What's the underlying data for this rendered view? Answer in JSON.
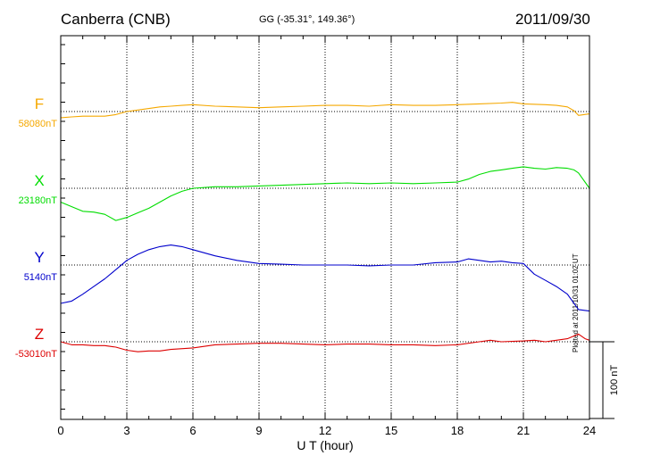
{
  "header": {
    "station": "Canberra (CNB)",
    "coords": "GG (-35.31°, 149.36°)",
    "date": "2011/09/30",
    "plotted": "Plotted at 2011/10/31 01:02 UT"
  },
  "colors": {
    "F": "#f5a800",
    "X": "#00dd00",
    "Y": "#0000cc",
    "Z": "#dd0000",
    "grid": "#000000"
  },
  "chart_data": {
    "type": "line",
    "xlabel": "U T (hour)",
    "xlim": [
      0,
      24
    ],
    "xticks": [
      "0",
      "3",
      "6",
      "9",
      "12",
      "15",
      "18",
      "21",
      "24"
    ],
    "scale_bar_label": "100 nT",
    "scale_bar_nT": 100,
    "series": [
      {
        "name": "F",
        "base_label": "58080nT",
        "baseline_nT": 58080,
        "x": [
          0,
          0.5,
          1,
          1.5,
          2,
          2.5,
          3,
          3.5,
          4,
          4.5,
          5,
          5.5,
          6,
          7,
          8,
          9,
          10,
          11,
          12,
          13,
          14,
          15,
          16,
          17,
          18,
          19,
          20,
          20.5,
          21,
          22,
          22.5,
          23,
          23.3,
          23.5,
          24
        ],
        "values": [
          -8,
          -7,
          -6,
          -6,
          -6,
          -4,
          0,
          2,
          4,
          6,
          7,
          8,
          9,
          7,
          6,
          5,
          6,
          7,
          8,
          8,
          7,
          9,
          8,
          8,
          9,
          10,
          11,
          12,
          10,
          9,
          8,
          6,
          1,
          -5,
          -3
        ]
      },
      {
        "name": "X",
        "base_label": "23180nT",
        "baseline_nT": 23180,
        "x": [
          0,
          0.5,
          1,
          1.5,
          2,
          2.5,
          3,
          3.5,
          4,
          4.5,
          5,
          5.5,
          6,
          7,
          8,
          9,
          10,
          11,
          12,
          13,
          14,
          15,
          16,
          17,
          18,
          18.5,
          19,
          19.5,
          20,
          20.5,
          21,
          21.5,
          22,
          22.5,
          23,
          23.3,
          23.5,
          23.7,
          24
        ],
        "values": [
          -18,
          -24,
          -30,
          -31,
          -34,
          -42,
          -38,
          -32,
          -26,
          -18,
          -10,
          -4,
          0,
          2,
          2,
          3,
          4,
          5,
          6,
          7,
          6,
          7,
          6,
          7,
          8,
          12,
          18,
          22,
          24,
          26,
          28,
          26,
          25,
          27,
          26,
          24,
          20,
          12,
          0
        ]
      },
      {
        "name": "Y",
        "base_label": "5140nT",
        "baseline_nT": 5140,
        "x": [
          0,
          0.5,
          1,
          1.5,
          2,
          2.5,
          3,
          3.5,
          4,
          4.5,
          5,
          5.5,
          6,
          7,
          8,
          9,
          10,
          11,
          12,
          13,
          14,
          15,
          16,
          17,
          18,
          18.5,
          19,
          19.5,
          20,
          20.5,
          21,
          21.5,
          22,
          22.5,
          23,
          23.5,
          24
        ],
        "values": [
          -50,
          -47,
          -38,
          -28,
          -18,
          -6,
          6,
          14,
          20,
          24,
          26,
          24,
          20,
          12,
          6,
          2,
          1,
          0,
          0,
          0,
          -1,
          0,
          0,
          3,
          4,
          8,
          6,
          4,
          5,
          3,
          2,
          -12,
          -20,
          -28,
          -38,
          -58,
          -60
        ]
      },
      {
        "name": "Z",
        "base_label": "-53010nT",
        "baseline_nT": -53010,
        "x": [
          0,
          0.5,
          1,
          1.5,
          2,
          2.5,
          3,
          3.5,
          4,
          4.5,
          5,
          6,
          7,
          8,
          9,
          10,
          11,
          12,
          13,
          14,
          15,
          16,
          17,
          18,
          19,
          19.5,
          20,
          21,
          21.5,
          22,
          22.5,
          23,
          23.5,
          23.8,
          24
        ],
        "values": [
          0,
          -4,
          -4,
          -5,
          -5,
          -7,
          -11,
          -13,
          -12,
          -12,
          -10,
          -8,
          -4,
          -3,
          -2,
          -2,
          -3,
          -4,
          -3,
          -3,
          -4,
          -4,
          -5,
          -4,
          0,
          2,
          0,
          1,
          2,
          0,
          2,
          4,
          10,
          4,
          2
        ]
      }
    ]
  }
}
